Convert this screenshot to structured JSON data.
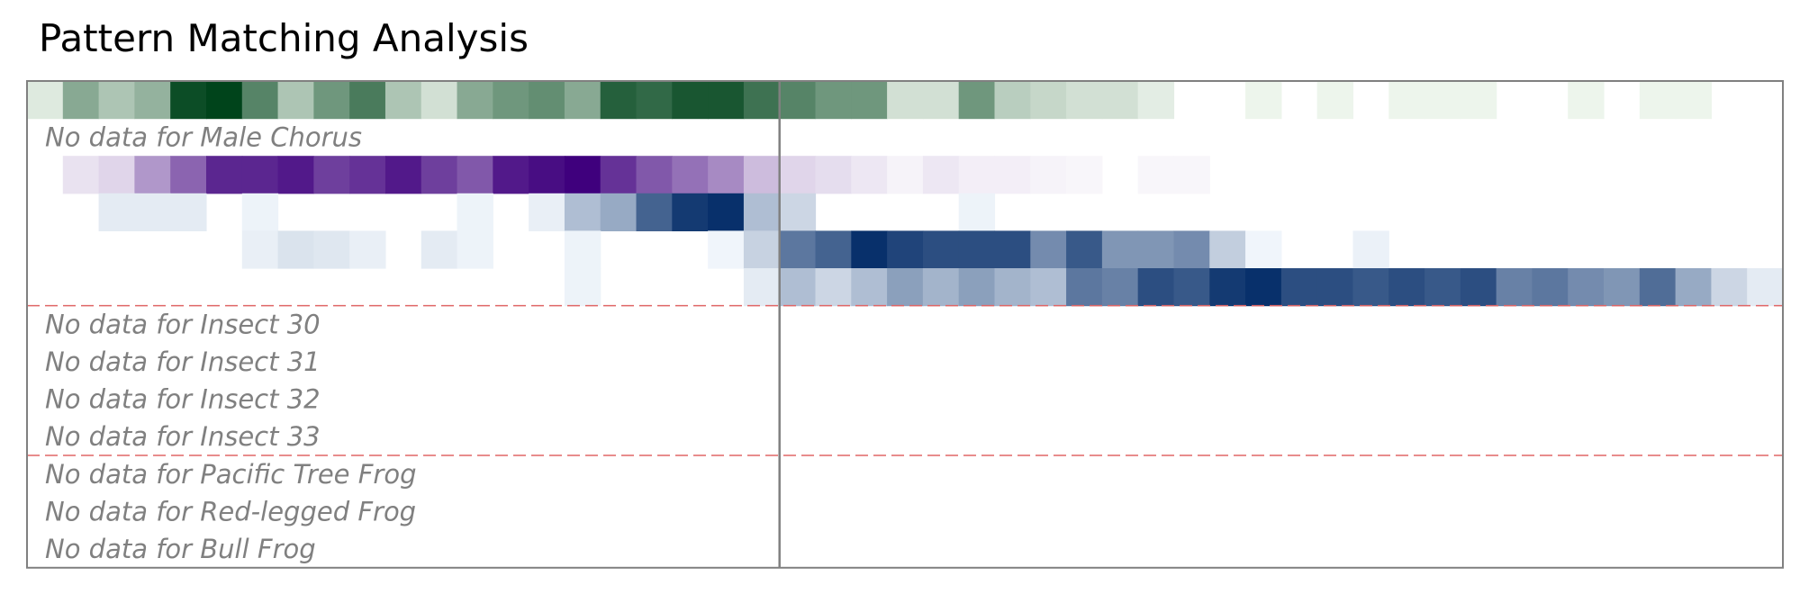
{
  "chart_data": {
    "type": "heatmap",
    "title": "Pattern Matching Analysis",
    "n_columns": 49,
    "marker_column": 21,
    "group_separators_after_row": [
      5,
      9
    ],
    "rows": [
      {
        "label": "",
        "palette": "green",
        "values": [
          0.1,
          0.45,
          0.3,
          0.4,
          0.95,
          1.0,
          0.65,
          0.3,
          0.55,
          0.7,
          0.3,
          0.15,
          0.45,
          0.55,
          0.6,
          0.45,
          0.85,
          0.8,
          0.9,
          0.9,
          0.75,
          0.65,
          0.55,
          0.55,
          0.15,
          0.15,
          0.55,
          0.25,
          0.2,
          0.15,
          0.15,
          0.08,
          0,
          0,
          0.04,
          0,
          0.04,
          0,
          0.04,
          0.04,
          0.04,
          0,
          0,
          0.04,
          0,
          0.04,
          0.04,
          0,
          0
        ]
      },
      {
        "label": "No data for Male Chorus",
        "empty": true
      },
      {
        "label": "",
        "palette": "purple",
        "values": [
          0,
          0.1,
          0.15,
          0.4,
          0.6,
          0.85,
          0.85,
          0.9,
          0.75,
          0.8,
          0.9,
          0.75,
          0.65,
          0.9,
          0.95,
          1.0,
          0.8,
          0.65,
          0.55,
          0.45,
          0.25,
          0.15,
          0.12,
          0.08,
          0.03,
          0.08,
          0.05,
          0.05,
          0.03,
          0.02,
          0,
          0.02,
          0.02,
          0,
          0,
          0,
          0,
          0,
          0,
          0,
          0,
          0,
          0,
          0,
          0,
          0,
          0,
          0,
          0
        ]
      },
      {
        "label": "",
        "palette": "blue",
        "values": [
          0,
          0,
          0.08,
          0.08,
          0.08,
          0,
          0.04,
          0,
          0,
          0,
          0,
          0,
          0.04,
          0,
          0.06,
          0.3,
          0.4,
          0.75,
          0.95,
          1.0,
          0.3,
          0.18,
          0,
          0,
          0,
          0,
          0.04,
          0,
          0,
          0,
          0,
          0,
          0,
          0,
          0,
          0,
          0,
          0,
          0,
          0,
          0,
          0,
          0,
          0,
          0,
          0,
          0,
          0,
          0
        ]
      },
      {
        "label": "",
        "palette": "blue",
        "values": [
          0,
          0,
          0,
          0,
          0,
          0,
          0.06,
          0.12,
          0.1,
          0.06,
          0,
          0.08,
          0.04,
          0,
          0,
          0.04,
          0,
          0,
          0,
          0.03,
          0.2,
          0.65,
          0.75,
          1.0,
          0.9,
          0.85,
          0.85,
          0.85,
          0.55,
          0.8,
          0.5,
          0.5,
          0.55,
          0.22,
          0.03,
          0,
          0,
          0.05,
          0,
          0,
          0,
          0,
          0,
          0,
          0,
          0,
          0,
          0,
          0
        ]
      },
      {
        "label": "",
        "palette": "blue",
        "values": [
          0,
          0,
          0,
          0,
          0,
          0,
          0,
          0,
          0,
          0,
          0,
          0,
          0,
          0,
          0,
          0.04,
          0,
          0,
          0,
          0,
          0.08,
          0.3,
          0.18,
          0.3,
          0.45,
          0.35,
          0.45,
          0.35,
          0.3,
          0.65,
          0.6,
          0.85,
          0.8,
          0.95,
          1.0,
          0.85,
          0.85,
          0.8,
          0.85,
          0.8,
          0.85,
          0.6,
          0.65,
          0.55,
          0.5,
          0.7,
          0.4,
          0.18,
          0.08
        ]
      },
      {
        "label": "No data for Insect 30",
        "empty": true
      },
      {
        "label": "No data for Insect 31",
        "empty": true
      },
      {
        "label": "No data for Insect 32",
        "empty": true
      },
      {
        "label": "No data for Insect 33",
        "empty": true
      },
      {
        "label": "No data for Pacific Tree Frog",
        "empty": true
      },
      {
        "label": "No data for Red-legged Frog",
        "empty": true
      },
      {
        "label": "No data for Bull Frog",
        "empty": true
      }
    ]
  },
  "colors": {
    "frame": "#808080",
    "separator": "#e06666",
    "empty_text": "#808080",
    "green": [
      "#f7fcf5",
      "#00441b"
    ],
    "purple": [
      "#fcfbfd",
      "#3f007d"
    ],
    "blue": [
      "#f7fbff",
      "#08306b"
    ]
  }
}
